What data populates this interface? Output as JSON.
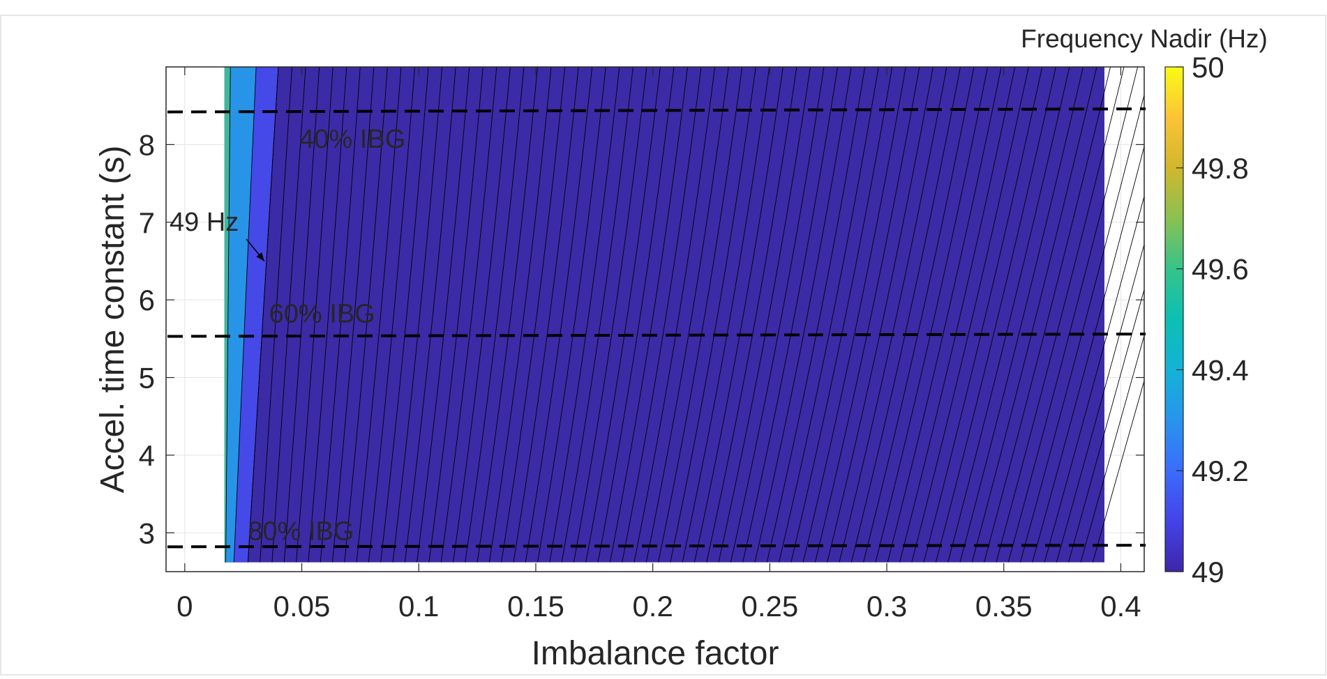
{
  "chart_data": {
    "type": "heatmap",
    "subtype": "filled-contour",
    "title": "",
    "xlabel": "Imbalance factor",
    "ylabel": "Accel. time constant (s)",
    "xlim": [
      -0.008,
      0.41
    ],
    "ylim": [
      2.5,
      9.0
    ],
    "grid": true,
    "x_ticks": [
      0,
      0.05,
      0.1,
      0.15,
      0.2,
      0.25,
      0.3,
      0.35,
      0.4
    ],
    "x_tick_labels": [
      "0",
      "0.05",
      "0.1",
      "0.15",
      "0.2",
      "0.25",
      "0.3",
      "0.35",
      "0.4"
    ],
    "y_ticks": [
      3,
      4,
      5,
      6,
      7,
      8
    ],
    "y_tick_labels": [
      "3",
      "4",
      "5",
      "6",
      "7",
      "8"
    ],
    "data_extent": {
      "x": [
        0.017,
        0.393
      ],
      "y": [
        2.62,
        9.0
      ]
    },
    "contour_regions": [
      {
        "level_range": [
          49.4,
          49.6
        ],
        "color": "#3fb89a",
        "x_boundary_top": 0.0195,
        "x_boundary_bottom": 0.0175
      },
      {
        "level_range": [
          49.2,
          49.4
        ],
        "color": "#2894e8",
        "x_boundary_top": 0.0305,
        "x_boundary_bottom": 0.021
      },
      {
        "level_range": [
          49.0,
          49.2
        ],
        "color": "#4549e8",
        "x_boundary_top": 0.04,
        "x_boundary_bottom": 0.027
      },
      {
        "level_range": [
          48.0,
          49.0
        ],
        "color": "#3b2ba6",
        "x_boundary_top": 0.393,
        "x_boundary_bottom": 0.393
      }
    ],
    "contour_line_color": "#000000",
    "colorbar": {
      "title": "Frequency Nadir (Hz)",
      "min": 49,
      "max": 50,
      "ticks": [
        49,
        49.2,
        49.4,
        49.6,
        49.8,
        50
      ],
      "tick_labels": [
        "49",
        "49.2",
        "49.4",
        "49.6",
        "49.8",
        "50"
      ],
      "colormap": "parula"
    },
    "reference_lines": [
      {
        "label": "40% IBG",
        "y_start": 8.42,
        "y_end": 8.46,
        "style": "dashed",
        "color": "#000000"
      },
      {
        "label": "60% IBG",
        "y_start": 5.53,
        "y_end": 5.56,
        "style": "dashed",
        "color": "#000000"
      },
      {
        "label": "80% IBG",
        "y_start": 2.82,
        "y_end": 2.84,
        "style": "dashed",
        "color": "#000000"
      }
    ],
    "annotations": [
      {
        "text": "40% IBG",
        "x": 0.049,
        "y": 8.05
      },
      {
        "text": "60% IBG",
        "x": 0.036,
        "y": 5.8
      },
      {
        "text": "80% IBG",
        "x": 0.027,
        "y": 3.0
      },
      {
        "text": "49 Hz",
        "x": -0.0065,
        "y": 6.98,
        "arrow_to": {
          "x": 0.034,
          "y": 6.5
        }
      }
    ]
  }
}
